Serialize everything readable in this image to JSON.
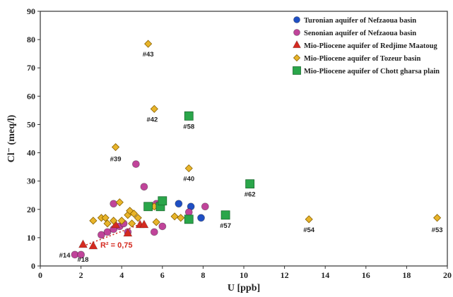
{
  "chart_data": {
    "type": "scatter",
    "xlabel": "U [ppb]",
    "ylabel": "Cl⁻ (meq/l)",
    "xlim": [
      0,
      20
    ],
    "ylim": [
      0,
      90
    ],
    "xticks": [
      0,
      2,
      4,
      6,
      8,
      10,
      12,
      14,
      16,
      18,
      20
    ],
    "yticks": [
      0,
      10,
      20,
      30,
      40,
      50,
      60,
      70,
      80,
      90
    ],
    "grid": false,
    "legend_position": "top-right",
    "series": [
      {
        "name": "Turonian aquifer of Nefzaoua basin",
        "marker": "circle",
        "color": "#1f4fc4",
        "points": [
          [
            6.8,
            22
          ],
          [
            7.4,
            21
          ],
          [
            7.9,
            17
          ]
        ]
      },
      {
        "name": "Senonian aquifer of Nefzaoua basin",
        "marker": "circle",
        "color": "#c0449a",
        "points": [
          [
            1.7,
            4
          ],
          [
            2.0,
            4
          ],
          [
            3.0,
            11
          ],
          [
            3.3,
            12
          ],
          [
            3.6,
            22
          ],
          [
            3.6,
            13
          ],
          [
            3.9,
            14
          ],
          [
            4.1,
            15
          ],
          [
            4.3,
            12
          ],
          [
            4.7,
            36
          ],
          [
            5.1,
            28
          ],
          [
            5.6,
            12
          ],
          [
            5.7,
            22
          ],
          [
            6.0,
            14
          ],
          [
            7.3,
            19
          ],
          [
            8.1,
            21
          ]
        ]
      },
      {
        "name": "Mio-Pliocene aquifer of Redjime Maatoug",
        "marker": "triangle",
        "color": "#d42a20",
        "points": [
          [
            2.1,
            7.5
          ],
          [
            2.6,
            7
          ],
          [
            3.7,
            14.5
          ],
          [
            4.3,
            11.5
          ],
          [
            4.9,
            14.5
          ],
          [
            5.1,
            14.5
          ]
        ]
      },
      {
        "name": "Mio-Pliocene aquifer of  Tozeur basin",
        "marker": "diamond",
        "color": "#e8b42a",
        "points": [
          [
            2.6,
            16
          ],
          [
            3.0,
            17
          ],
          [
            3.2,
            17
          ],
          [
            3.3,
            15
          ],
          [
            3.6,
            16
          ],
          [
            3.7,
            42
          ],
          [
            3.9,
            22.5
          ],
          [
            4.0,
            16
          ],
          [
            4.3,
            18
          ],
          [
            4.4,
            19.5
          ],
          [
            4.5,
            15
          ],
          [
            4.6,
            18.5
          ],
          [
            4.8,
            17
          ],
          [
            5.3,
            78.5
          ],
          [
            5.6,
            55.5
          ],
          [
            5.6,
            21
          ],
          [
            5.7,
            15.5
          ],
          [
            6.6,
            17.5
          ],
          [
            6.9,
            17
          ],
          [
            7.3,
            34.5
          ],
          [
            13.2,
            16.5
          ],
          [
            19.5,
            17
          ]
        ]
      },
      {
        "name": "Mio-Pliocene aquifer of Chott gharsa plain",
        "marker": "square",
        "color": "#2aa64a",
        "points": [
          [
            5.3,
            21
          ],
          [
            5.9,
            21
          ],
          [
            6.0,
            23
          ],
          [
            7.3,
            16.5
          ],
          [
            7.3,
            53
          ],
          [
            9.1,
            18
          ],
          [
            10.3,
            29
          ]
        ]
      }
    ],
    "annotations": [
      {
        "text": "#43",
        "x": 5.3,
        "y": 74
      },
      {
        "text": "#42",
        "x": 5.5,
        "y": 51
      },
      {
        "text": "#58",
        "x": 7.3,
        "y": 48.5
      },
      {
        "text": "#39",
        "x": 3.7,
        "y": 37
      },
      {
        "text": "#40",
        "x": 7.3,
        "y": 30
      },
      {
        "text": "#62",
        "x": 10.3,
        "y": 24.5
      },
      {
        "text": "#57",
        "x": 9.1,
        "y": 13.5
      },
      {
        "text": "#54",
        "x": 13.2,
        "y": 12
      },
      {
        "text": "#53",
        "x": 19.5,
        "y": 12
      },
      {
        "text": "#14",
        "x": 1.2,
        "y": 3
      },
      {
        "text": "#18",
        "x": 2.1,
        "y": 1.5
      }
    ],
    "trendline": {
      "label": "R² = 0,75",
      "from": [
        2.1,
        7
      ],
      "to": [
        5.0,
        15
      ],
      "color": "#d42a20"
    }
  }
}
